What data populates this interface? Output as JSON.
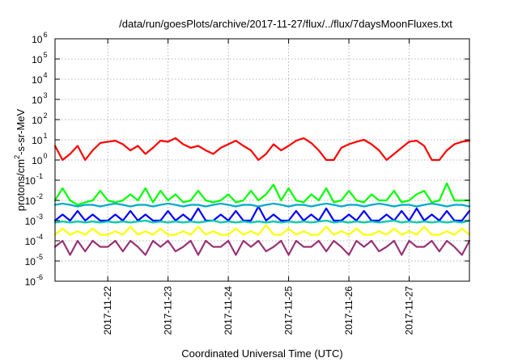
{
  "chart_data": {
    "type": "line",
    "title": "/data/run/goesPlots/archive/2017-11-27/flux/../flux/7daysMoonFluxes.txt",
    "xlabel": "Coordinated Universal Time (UTC)",
    "ylabel": {
      "base": "protons/cm",
      "sup": "2",
      "rest": "-s-sr-MeV"
    },
    "yscale": "log",
    "ylim": [
      1e-06,
      1000000.0
    ],
    "y_ticks": [
      {
        "base": "10",
        "exp": "-6",
        "value": 1e-06
      },
      {
        "base": "10",
        "exp": "-5",
        "value": 1e-05
      },
      {
        "base": "10",
        "exp": "-4",
        "value": 0.0001
      },
      {
        "base": "10",
        "exp": "-3",
        "value": 0.001
      },
      {
        "base": "10",
        "exp": "-2",
        "value": 0.01
      },
      {
        "base": "10",
        "exp": "-1",
        "value": 0.1
      },
      {
        "base": "10",
        "exp": "0",
        "value": 1.0
      },
      {
        "base": "10",
        "exp": "1",
        "value": 10.0
      },
      {
        "base": "10",
        "exp": "2",
        "value": 100.0
      },
      {
        "base": "10",
        "exp": "3",
        "value": 1000.0
      },
      {
        "base": "10",
        "exp": "4",
        "value": 10000.0
      },
      {
        "base": "10",
        "exp": "5",
        "value": 100000.0
      },
      {
        "base": "10",
        "exp": "6",
        "value": 1000000.0
      }
    ],
    "xlim": [
      "2017-11-21 03:00",
      "2017-11-28 00:00"
    ],
    "x_ticks": [
      {
        "label": "2017-11-22",
        "value": "2017-11-22 00:00"
      },
      {
        "label": "2017-11-23",
        "value": "2017-11-23 00:00"
      },
      {
        "label": "2017-11-24",
        "value": "2017-11-24 00:00"
      },
      {
        "label": "2017-11-25",
        "value": "2017-11-25 00:00"
      },
      {
        "label": "2017-11-26",
        "value": "2017-11-26 00:00"
      },
      {
        "label": "2017-11-27",
        "value": "2017-11-27 00:00"
      }
    ],
    "grid": true,
    "legend": "none",
    "x": [
      "2017-11-21 03:00",
      "2017-11-21 06:00",
      "2017-11-21 09:00",
      "2017-11-21 12:00",
      "2017-11-21 15:00",
      "2017-11-21 18:00",
      "2017-11-21 21:00",
      "2017-11-22 00:00",
      "2017-11-22 03:00",
      "2017-11-22 06:00",
      "2017-11-22 09:00",
      "2017-11-22 12:00",
      "2017-11-22 15:00",
      "2017-11-22 18:00",
      "2017-11-22 21:00",
      "2017-11-23 00:00",
      "2017-11-23 03:00",
      "2017-11-23 06:00",
      "2017-11-23 09:00",
      "2017-11-23 12:00",
      "2017-11-23 15:00",
      "2017-11-23 18:00",
      "2017-11-23 21:00",
      "2017-11-24 00:00",
      "2017-11-24 03:00",
      "2017-11-24 06:00",
      "2017-11-24 09:00",
      "2017-11-24 12:00",
      "2017-11-24 15:00",
      "2017-11-24 18:00",
      "2017-11-24 21:00",
      "2017-11-25 00:00",
      "2017-11-25 03:00",
      "2017-11-25 06:00",
      "2017-11-25 09:00",
      "2017-11-25 12:00",
      "2017-11-25 15:00",
      "2017-11-25 18:00",
      "2017-11-25 21:00",
      "2017-11-26 00:00",
      "2017-11-26 03:00",
      "2017-11-26 06:00",
      "2017-11-26 09:00",
      "2017-11-26 12:00",
      "2017-11-26 15:00",
      "2017-11-26 18:00",
      "2017-11-26 21:00",
      "2017-11-27 00:00",
      "2017-11-27 03:00",
      "2017-11-27 06:00",
      "2017-11-27 09:00",
      "2017-11-27 12:00",
      "2017-11-27 15:00",
      "2017-11-27 18:00",
      "2017-11-27 21:00",
      "2017-11-28 00:00"
    ],
    "series": [
      {
        "color": "#ff0000",
        "values": [
          5,
          1,
          2,
          5,
          1,
          3,
          7,
          8,
          9,
          6,
          3,
          5,
          2,
          4,
          9,
          8,
          12,
          6,
          4,
          5,
          3,
          2,
          4,
          6,
          9,
          5,
          3,
          1,
          2,
          6,
          3,
          5,
          9,
          12,
          7,
          3,
          1,
          1,
          4,
          6,
          8,
          10,
          6,
          3,
          1,
          2,
          4,
          8,
          9,
          5,
          1,
          1,
          3,
          6,
          8,
          9
        ]
      },
      {
        "color": "#00ff00",
        "values": [
          0.01,
          0.04,
          0.01,
          0.006,
          0.008,
          0.01,
          0.03,
          0.01,
          0.008,
          0.01,
          0.02,
          0.01,
          0.04,
          0.008,
          0.03,
          0.01,
          0.02,
          0.008,
          0.01,
          0.03,
          0.01,
          0.008,
          0.01,
          0.02,
          0.008,
          0.01,
          0.03,
          0.01,
          0.02,
          0.06,
          0.01,
          0.04,
          0.01,
          0.008,
          0.02,
          0.01,
          0.04,
          0.008,
          0.01,
          0.03,
          0.01,
          0.008,
          0.02,
          0.01,
          0.01,
          0.03,
          0.008,
          0.01,
          0.02,
          0.03,
          0.008,
          0.01,
          0.07,
          0.01,
          0.01,
          0.01
        ]
      },
      {
        "color": "#0000ff",
        "values": [
          0.001,
          0.002,
          0.001,
          0.003,
          0.001,
          0.002,
          0.001,
          0.001,
          0.002,
          0.001,
          0.003,
          0.001,
          0.002,
          0.001,
          0.001,
          0.003,
          0.001,
          0.002,
          0.001,
          0.004,
          0.001,
          0.001,
          0.002,
          0.001,
          0.003,
          0.001,
          0.001,
          0.005,
          0.001,
          0.002,
          0.001,
          0.001,
          0.003,
          0.001,
          0.002,
          0.001,
          0.004,
          0.001,
          0.001,
          0.002,
          0.001,
          0.003,
          0.001,
          0.001,
          0.002,
          0.001,
          0.003,
          0.001,
          0.004,
          0.001,
          0.002,
          0.001,
          0.003,
          0.001,
          0.001,
          0.003
        ]
      },
      {
        "color": "#00ccaa",
        "values": [
          0.0008,
          0.0009,
          0.0008,
          0.0009,
          0.0008,
          0.0009,
          0.0008,
          0.0009,
          0.0008,
          0.0009,
          0.0008,
          0.0009,
          0.001,
          0.0008,
          0.0009,
          0.0008,
          0.0009,
          0.0008,
          0.0009,
          0.0008,
          0.0009,
          0.001,
          0.0008,
          0.0009,
          0.0008,
          0.0009,
          0.0008,
          0.0009,
          0.0008,
          0.0009,
          0.0008,
          0.0009,
          0.0008,
          0.0009,
          0.0008,
          0.0009,
          0.001,
          0.0008,
          0.0009,
          0.0008,
          0.0009,
          0.0008,
          0.0009,
          0.0008,
          0.0009,
          0.001,
          0.0008,
          0.0009,
          0.0008,
          0.0009,
          0.0008,
          0.0009,
          0.0008,
          0.0009,
          0.0008,
          0.001
        ]
      },
      {
        "color": "#00aacc",
        "values": [
          0.006,
          0.007,
          0.006,
          0.005,
          0.006,
          0.006,
          0.005,
          0.006,
          0.007,
          0.006,
          0.005,
          0.006,
          0.006,
          0.005,
          0.006,
          0.007,
          0.006,
          0.005,
          0.006,
          0.006,
          0.005,
          0.006,
          0.007,
          0.006,
          0.005,
          0.006,
          0.006,
          0.005,
          0.006,
          0.007,
          0.006,
          0.005,
          0.006,
          0.006,
          0.005,
          0.006,
          0.007,
          0.006,
          0.005,
          0.006,
          0.006,
          0.005,
          0.006,
          0.007,
          0.006,
          0.005,
          0.006,
          0.006,
          0.005,
          0.006,
          0.007,
          0.006,
          0.005,
          0.006,
          0.006,
          0.005
        ]
      },
      {
        "color": "#ffff00",
        "values": [
          0.0002,
          0.0004,
          0.0002,
          0.0003,
          0.0002,
          0.0004,
          0.0002,
          0.0002,
          0.0003,
          0.0002,
          0.0005,
          0.0002,
          0.0003,
          0.0002,
          0.0004,
          0.0002,
          0.0002,
          0.0003,
          0.0002,
          0.0005,
          0.0002,
          0.0003,
          0.0002,
          0.0002,
          0.0004,
          0.0002,
          0.0003,
          0.0002,
          0.0006,
          0.0002,
          0.0002,
          0.0004,
          0.0002,
          0.0003,
          0.0002,
          0.0002,
          0.0005,
          0.0002,
          0.0003,
          0.0002,
          0.0004,
          0.0002,
          0.0002,
          0.0003,
          0.0002,
          0.0004,
          0.0002,
          0.0003,
          0.0002,
          0.0005,
          0.0002,
          0.0002,
          0.0003,
          0.0002,
          0.0004,
          0.0002
        ]
      },
      {
        "color": "#993377",
        "values": [
          5e-05,
          0.0001,
          2e-05,
          0.0001,
          3e-05,
          0.0001,
          5e-05,
          5e-05,
          0.0001,
          3e-05,
          0.0001,
          5e-05,
          2e-05,
          0.0001,
          5e-05,
          0.0001,
          3e-05,
          5e-05,
          0.0001,
          2e-05,
          0.0001,
          5e-05,
          5e-05,
          0.0001,
          2e-05,
          0.0001,
          5e-05,
          0.0001,
          3e-05,
          5e-05,
          0.0001,
          2e-05,
          0.0001,
          5e-05,
          5e-05,
          0.0001,
          3e-05,
          0.0001,
          5e-05,
          2e-05,
          0.0001,
          5e-05,
          0.0001,
          3e-05,
          5e-05,
          0.0001,
          2e-05,
          0.0001,
          5e-05,
          5e-05,
          0.0001,
          3e-05,
          0.0001,
          5e-05,
          2e-05,
          0.0001
        ]
      }
    ]
  }
}
